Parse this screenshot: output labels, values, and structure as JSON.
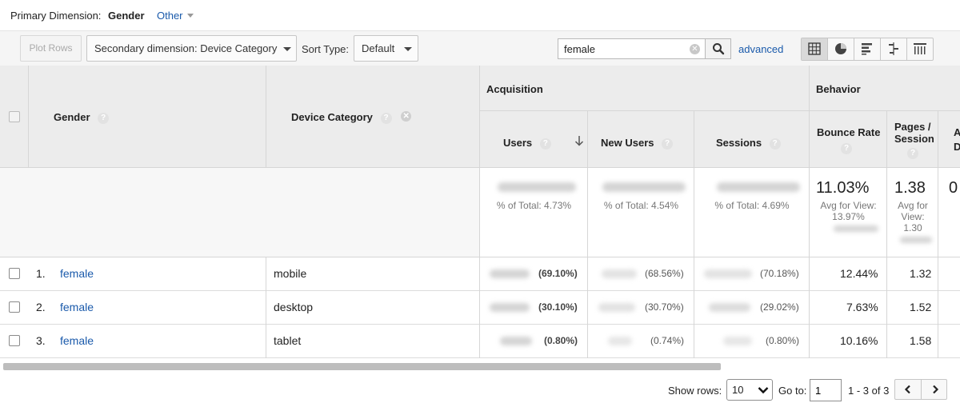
{
  "primary_dimension": {
    "label": "Primary Dimension:",
    "selected": "Gender",
    "other": "Other"
  },
  "toolbar": {
    "plot_rows": "Plot Rows",
    "secondary_dimension": "Secondary dimension: Device Category",
    "sort_type_label": "Sort Type:",
    "sort_type_value": "Default",
    "search_value": "female",
    "advanced": "advanced",
    "views": [
      "table-view-icon",
      "pie-view-icon",
      "performance-view-icon",
      "comparison-view-icon",
      "pivot-view-icon"
    ],
    "active_view": "table-view-icon"
  },
  "table": {
    "headers": {
      "gender": "Gender",
      "device_category": "Device Category",
      "acquisition": "Acquisition",
      "behavior": "Behavior",
      "users": "Users",
      "new_users": "New Users",
      "sessions": "Sessions",
      "bounce_rate": "Bounce Rate",
      "pages_session_1": "Pages /",
      "pages_session_2": "Session",
      "next_col_1": "A",
      "next_col_2": "D"
    },
    "totals": {
      "users_pct": "% of Total: 4.73%",
      "new_users_pct": "% of Total: 4.54%",
      "sessions_pct": "% of Total: 4.69%",
      "bounce_rate": "11.03%",
      "bounce_avg_1": "Avg for View:",
      "bounce_avg_2": "13.97%",
      "pages_session": "1.38",
      "pages_avg_1": "Avg for",
      "pages_avg_2": "View:",
      "pages_avg_3": "1.30",
      "next_col": "0"
    },
    "rows": [
      {
        "index": "1.",
        "gender": "female",
        "device": "mobile",
        "users_pct": "(69.10%)",
        "new_users_pct": "(68.56%)",
        "sessions_pct": "(70.18%)",
        "bounce_rate": "12.44%",
        "pages_session": "1.32"
      },
      {
        "index": "2.",
        "gender": "female",
        "device": "desktop",
        "users_pct": "(30.10%)",
        "new_users_pct": "(30.70%)",
        "sessions_pct": "(29.02%)",
        "bounce_rate": "7.63%",
        "pages_session": "1.52"
      },
      {
        "index": "3.",
        "gender": "female",
        "device": "tablet",
        "users_pct": "(0.80%)",
        "new_users_pct": "(0.74%)",
        "sessions_pct": "(0.80%)",
        "bounce_rate": "10.16%",
        "pages_session": "1.58"
      }
    ]
  },
  "footer": {
    "show_rows_label": "Show rows:",
    "show_rows_value": "10",
    "goto_label": "Go to:",
    "goto_value": "1",
    "range": "1 - 3 of 3"
  }
}
